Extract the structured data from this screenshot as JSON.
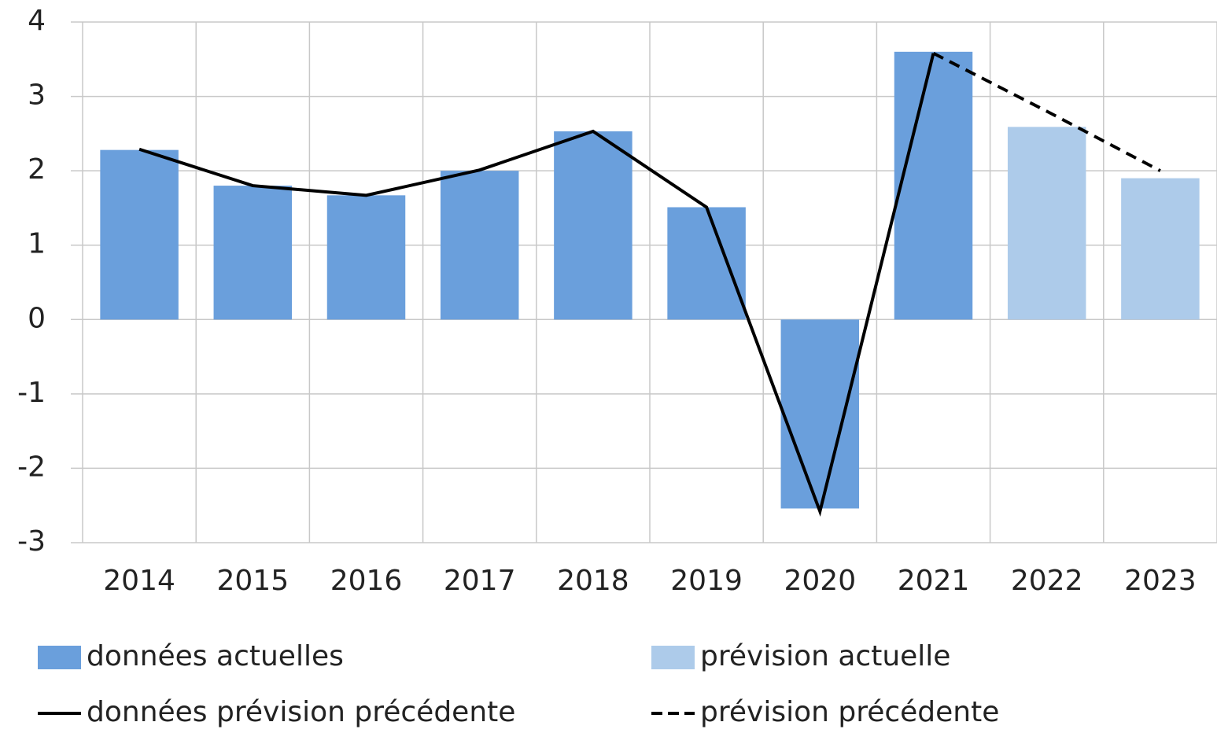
{
  "chart_data": {
    "type": "bar_line",
    "categories": [
      "2014",
      "2015",
      "2016",
      "2017",
      "2018",
      "2019",
      "2020",
      "2021",
      "2022",
      "2023"
    ],
    "series": [
      {
        "name": "données actuelles",
        "kind": "bar",
        "color": "#6a9fdc",
        "values": [
          2.28,
          1.8,
          1.67,
          2.0,
          2.53,
          1.51,
          -2.54,
          3.6,
          null,
          null
        ]
      },
      {
        "name": "prévision actuelle",
        "kind": "bar",
        "color": "#adcbea",
        "values": [
          null,
          null,
          null,
          null,
          null,
          null,
          null,
          null,
          2.59,
          1.9
        ]
      },
      {
        "name": "données prévision précédente",
        "kind": "line",
        "color": "#000000",
        "dash": false,
        "values": [
          2.29,
          1.8,
          1.67,
          2.01,
          2.53,
          1.51,
          -2.58,
          3.58,
          null,
          null
        ]
      },
      {
        "name": "prévision précédente",
        "kind": "line",
        "color": "#000000",
        "dash": true,
        "values": [
          null,
          null,
          null,
          null,
          null,
          null,
          null,
          3.58,
          2.8,
          2.0
        ]
      }
    ],
    "ylim": [
      -3,
      4
    ],
    "yticks": [
      -3,
      -2,
      -1,
      0,
      1,
      2,
      3,
      4
    ],
    "grid": true
  }
}
